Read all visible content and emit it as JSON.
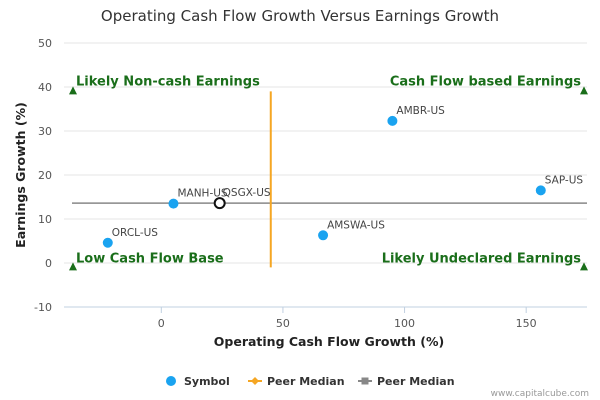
{
  "chart_data": {
    "type": "scatter",
    "title": "Operating Cash Flow Growth Versus Earnings Growth",
    "xlabel": "Operating Cash Flow Growth (%)",
    "ylabel": "Earnings Growth (%)",
    "xlim": [
      -40,
      175
    ],
    "ylim": [
      -10,
      50
    ],
    "xticks": [
      0,
      50,
      100,
      150
    ],
    "yticks": [
      -10,
      0,
      10,
      20,
      30,
      40,
      50
    ],
    "grid": "horizontal",
    "series": [
      {
        "name": "Symbol",
        "color": "#1aa3f0",
        "points": [
          {
            "label": "AMBR-US",
            "x": 95,
            "y": 32.3
          },
          {
            "label": "SAP-US",
            "x": 156,
            "y": 16.5
          },
          {
            "label": "MANH-US",
            "x": 5,
            "y": 13.5
          },
          {
            "label": "AMSWA-US",
            "x": 66.5,
            "y": 6.3
          },
          {
            "label": "ORCL-US",
            "x": -22,
            "y": 4.6
          }
        ]
      }
    ],
    "highlight": {
      "label": "QSGX-US",
      "x": 24,
      "y": 13.6
    },
    "peer_median_x": {
      "name": "Peer Median",
      "value": 45,
      "y_range": [
        -1,
        39
      ],
      "color": "#f5a623"
    },
    "peer_median_y": {
      "name": "Peer Median",
      "value": 13.6,
      "color": "#888888"
    },
    "quadrant_labels": [
      {
        "text": "Likely Non-cash Earnings",
        "x": -40,
        "y": 39,
        "pos": "top-left"
      },
      {
        "text": "Cash Flow based Earnings",
        "x": 175,
        "y": 39,
        "pos": "top-right"
      },
      {
        "text": "Low Cash Flow Base",
        "x": -40,
        "y": -1,
        "pos": "bottom-left"
      },
      {
        "text": "Likely Undeclared Earnings",
        "x": 175,
        "y": -1,
        "pos": "bottom-right"
      }
    ],
    "quadrant_color": "#1a6e1a",
    "legend": {
      "placement": "bottom",
      "entries": [
        {
          "label": "Symbol",
          "kind": "dot",
          "color": "#1aa3f0"
        },
        {
          "label": "Peer Median",
          "kind": "diamond-line",
          "color": "#f5a623"
        },
        {
          "label": "Peer Median",
          "kind": "square-line",
          "color": "#888888"
        }
      ]
    },
    "credit": "www.capitalcube.com"
  }
}
